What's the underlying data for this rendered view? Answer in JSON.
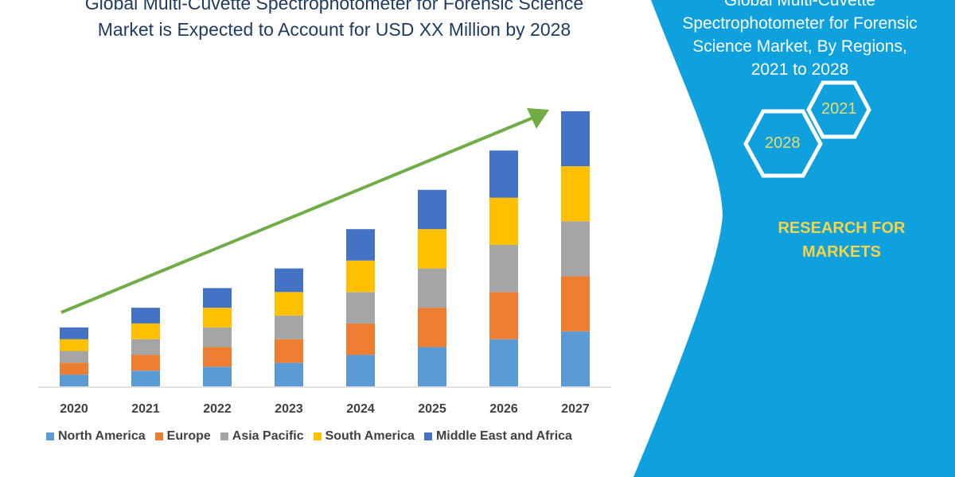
{
  "title_lines": [
    "Global Multi-Cuvette Spectrophotometer for Forensic Science",
    "Market is Expected to Account for USD XX Million by 2028"
  ],
  "side_panel": {
    "title_lines": [
      "Global Multi-Cuvette",
      "Spectrophotometer for Forensic",
      "Science  Market, By Regions,",
      "2021 to 2028"
    ],
    "hex_labels": [
      "2021",
      "2028"
    ],
    "brand_lines": [
      "RESEARCH FOR",
      "MARKETS"
    ],
    "panel_color": "#0ea1dd",
    "hex_text_color": "#e9dc6a"
  },
  "chart_data": {
    "type": "bar",
    "stacked": true,
    "categories": [
      "2020",
      "2021",
      "2022",
      "2023",
      "2024",
      "2025",
      "2026",
      "2027"
    ],
    "series": [
      {
        "name": "North America",
        "color": "#5b9bd5",
        "values": [
          15,
          20,
          25,
          30,
          40,
          50,
          60,
          70
        ]
      },
      {
        "name": "Europe",
        "color": "#ed7d31",
        "values": [
          15,
          20,
          25,
          30,
          40,
          50,
          60,
          70
        ]
      },
      {
        "name": "Asia Pacific",
        "color": "#a5a5a5",
        "values": [
          15,
          20,
          25,
          30,
          40,
          50,
          60,
          70
        ]
      },
      {
        "name": "South America",
        "color": "#ffc000",
        "values": [
          15,
          20,
          25,
          30,
          40,
          50,
          60,
          70
        ]
      },
      {
        "name": "Middle East and Africa",
        "color": "#4472c4",
        "values": [
          15,
          20,
          25,
          30,
          40,
          50,
          60,
          70
        ]
      }
    ],
    "ylim": [
      0,
      360
    ],
    "y_axis_shown": false,
    "grid": false,
    "legend_position": "bottom",
    "trend_arrow_color": "#70ad47"
  }
}
